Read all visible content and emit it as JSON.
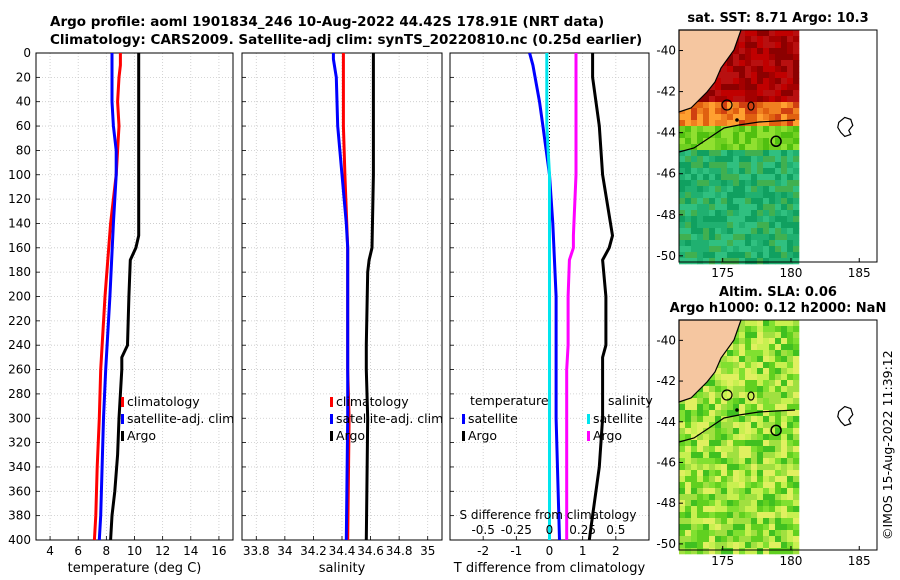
{
  "header": {
    "line1": "Argo profile: aoml 1901834_246 10-Aug-2022 44.42S 178.91E (NRT data)",
    "line2": "Climatology: CARS2009. Satellite-adj clim: synTS_20220810.nc (0.25d earlier)"
  },
  "colors": {
    "climatology": "#ff0000",
    "satellite": "#0000ff",
    "argo": "#000000",
    "salinity_satellite": "#00e5ee",
    "salinity_diff": "#ff00ff"
  },
  "chart_data": [
    {
      "type": "line",
      "name": "temperature",
      "xlabel": "temperature (deg C)",
      "ylabel": "",
      "xlim": [
        3,
        17
      ],
      "ylim": [
        400,
        0
      ],
      "xticks": [
        "4",
        "6",
        "8",
        "10",
        "12",
        "14",
        "16"
      ],
      "yticks": [
        "0",
        "20",
        "40",
        "60",
        "80",
        "100",
        "120",
        "140",
        "160",
        "180",
        "200",
        "220",
        "240",
        "260",
        "280",
        "300",
        "320",
        "340",
        "360",
        "380",
        "400"
      ],
      "legend": [
        "climatology",
        "satellite-adj. clim",
        "Argo"
      ],
      "series": [
        {
          "name": "climatology",
          "depth": [
            0,
            10,
            20,
            40,
            60,
            80,
            100,
            140,
            200,
            260,
            300,
            340,
            380,
            400
          ],
          "values": [
            9.0,
            9.0,
            8.9,
            8.8,
            8.9,
            8.8,
            8.7,
            8.3,
            7.9,
            7.6,
            7.5,
            7.35,
            7.25,
            7.15
          ]
        },
        {
          "name": "satellite-adj. clim",
          "depth": [
            0,
            10,
            20,
            40,
            60,
            80,
            100,
            140,
            200,
            260,
            300,
            340,
            380,
            400
          ],
          "values": [
            8.4,
            8.4,
            8.4,
            8.4,
            8.5,
            8.7,
            8.7,
            8.5,
            8.25,
            7.95,
            7.8,
            7.7,
            7.6,
            7.5
          ]
        },
        {
          "name": "Argo",
          "depth": [
            0,
            20,
            60,
            100,
            150,
            160,
            170,
            200,
            240,
            250,
            260,
            280,
            300,
            330,
            360,
            380,
            400
          ],
          "values": [
            10.3,
            10.3,
            10.3,
            10.3,
            10.3,
            10.1,
            9.7,
            9.6,
            9.5,
            9.1,
            9.1,
            9.0,
            8.9,
            8.8,
            8.6,
            8.4,
            8.3
          ]
        }
      ]
    },
    {
      "type": "line",
      "name": "salinity",
      "xlabel": "salinity",
      "xlim": [
        33.7,
        35.1
      ],
      "xticks": [
        "33.8",
        "34",
        "34.2",
        "34.4",
        "34.6",
        "34.8",
        "35"
      ],
      "legend": [
        "climatology",
        "satellite-adj. clim",
        "Argo"
      ],
      "series": [
        {
          "name": "climatology",
          "depth": [
            0,
            40,
            60,
            100,
            160,
            200,
            260,
            300,
            400
          ],
          "values": [
            34.41,
            34.41,
            34.41,
            34.42,
            34.44,
            34.44,
            34.44,
            34.45,
            34.44
          ]
        },
        {
          "name": "satellite-adj. clim",
          "depth": [
            0,
            5,
            20,
            60,
            100,
            140,
            160,
            200,
            260,
            300,
            400
          ],
          "values": [
            34.34,
            34.34,
            34.36,
            34.37,
            34.4,
            34.43,
            34.44,
            34.44,
            34.44,
            34.44,
            34.43
          ]
        },
        {
          "name": "Argo",
          "depth": [
            0,
            100,
            160,
            170,
            180,
            240,
            260,
            300,
            400
          ],
          "values": [
            34.62,
            34.62,
            34.61,
            34.59,
            34.58,
            34.57,
            34.57,
            34.58,
            34.57
          ]
        }
      ]
    },
    {
      "type": "line",
      "name": "difference",
      "xlabel": "T difference from climatology",
      "top_label": "S difference from climatology",
      "xlim": [
        -3,
        3
      ],
      "xticks": [
        "-2",
        "-1",
        "0",
        "1",
        "2"
      ],
      "top_ticks": [
        "-0.5",
        "-0.25",
        "0",
        "0.25",
        "0.5"
      ],
      "legend_titles": [
        "temperature",
        "salinity"
      ],
      "legend": [
        "satellite",
        "Argo",
        "satellite",
        "Argo"
      ],
      "series": [
        {
          "name": "T satellite",
          "depth": [
            0,
            10,
            40,
            60,
            100,
            140,
            200,
            300,
            400
          ],
          "values": [
            -0.6,
            -0.5,
            -0.3,
            -0.2,
            0.0,
            0.1,
            0.2,
            0.2,
            0.3
          ]
        },
        {
          "name": "T Argo",
          "depth": [
            0,
            20,
            60,
            100,
            150,
            160,
            170,
            200,
            240,
            250,
            300,
            340,
            380,
            400
          ],
          "values": [
            1.3,
            1.3,
            1.5,
            1.6,
            1.9,
            1.8,
            1.6,
            1.7,
            1.7,
            1.6,
            1.6,
            1.5,
            1.3,
            1.2
          ]
        },
        {
          "name": "S satellite",
          "depth": [
            0,
            20,
            60,
            100,
            140,
            200,
            300,
            400
          ],
          "values": [
            -0.02,
            -0.02,
            -0.02,
            0.0,
            0.0,
            0.0,
            0.0,
            0.0
          ]
        },
        {
          "name": "S Argo",
          "depth": [
            0,
            100,
            150,
            160,
            170,
            200,
            240,
            260,
            300,
            400
          ],
          "values": [
            0.2,
            0.2,
            0.18,
            0.18,
            0.15,
            0.14,
            0.14,
            0.13,
            0.13,
            0.13
          ]
        }
      ]
    }
  ],
  "maps": [
    {
      "title": "sat. SST: 8.71 Argo: 10.3",
      "xticks": [
        "175",
        "180",
        "185"
      ],
      "yticks": [
        "-40",
        "-42",
        "-44",
        "-46",
        "-48",
        "-50"
      ]
    },
    {
      "title_line1": "Altim. SLA: 0.06",
      "title_line2": "Argo h1000: 0.12 h2000: NaN",
      "xticks": [
        "175",
        "180",
        "185"
      ],
      "yticks": [
        "-40",
        "-42",
        "-44",
        "-46",
        "-48",
        "-50"
      ]
    }
  ],
  "credit": "©IMOS 15-Aug-2022 11:39:12"
}
